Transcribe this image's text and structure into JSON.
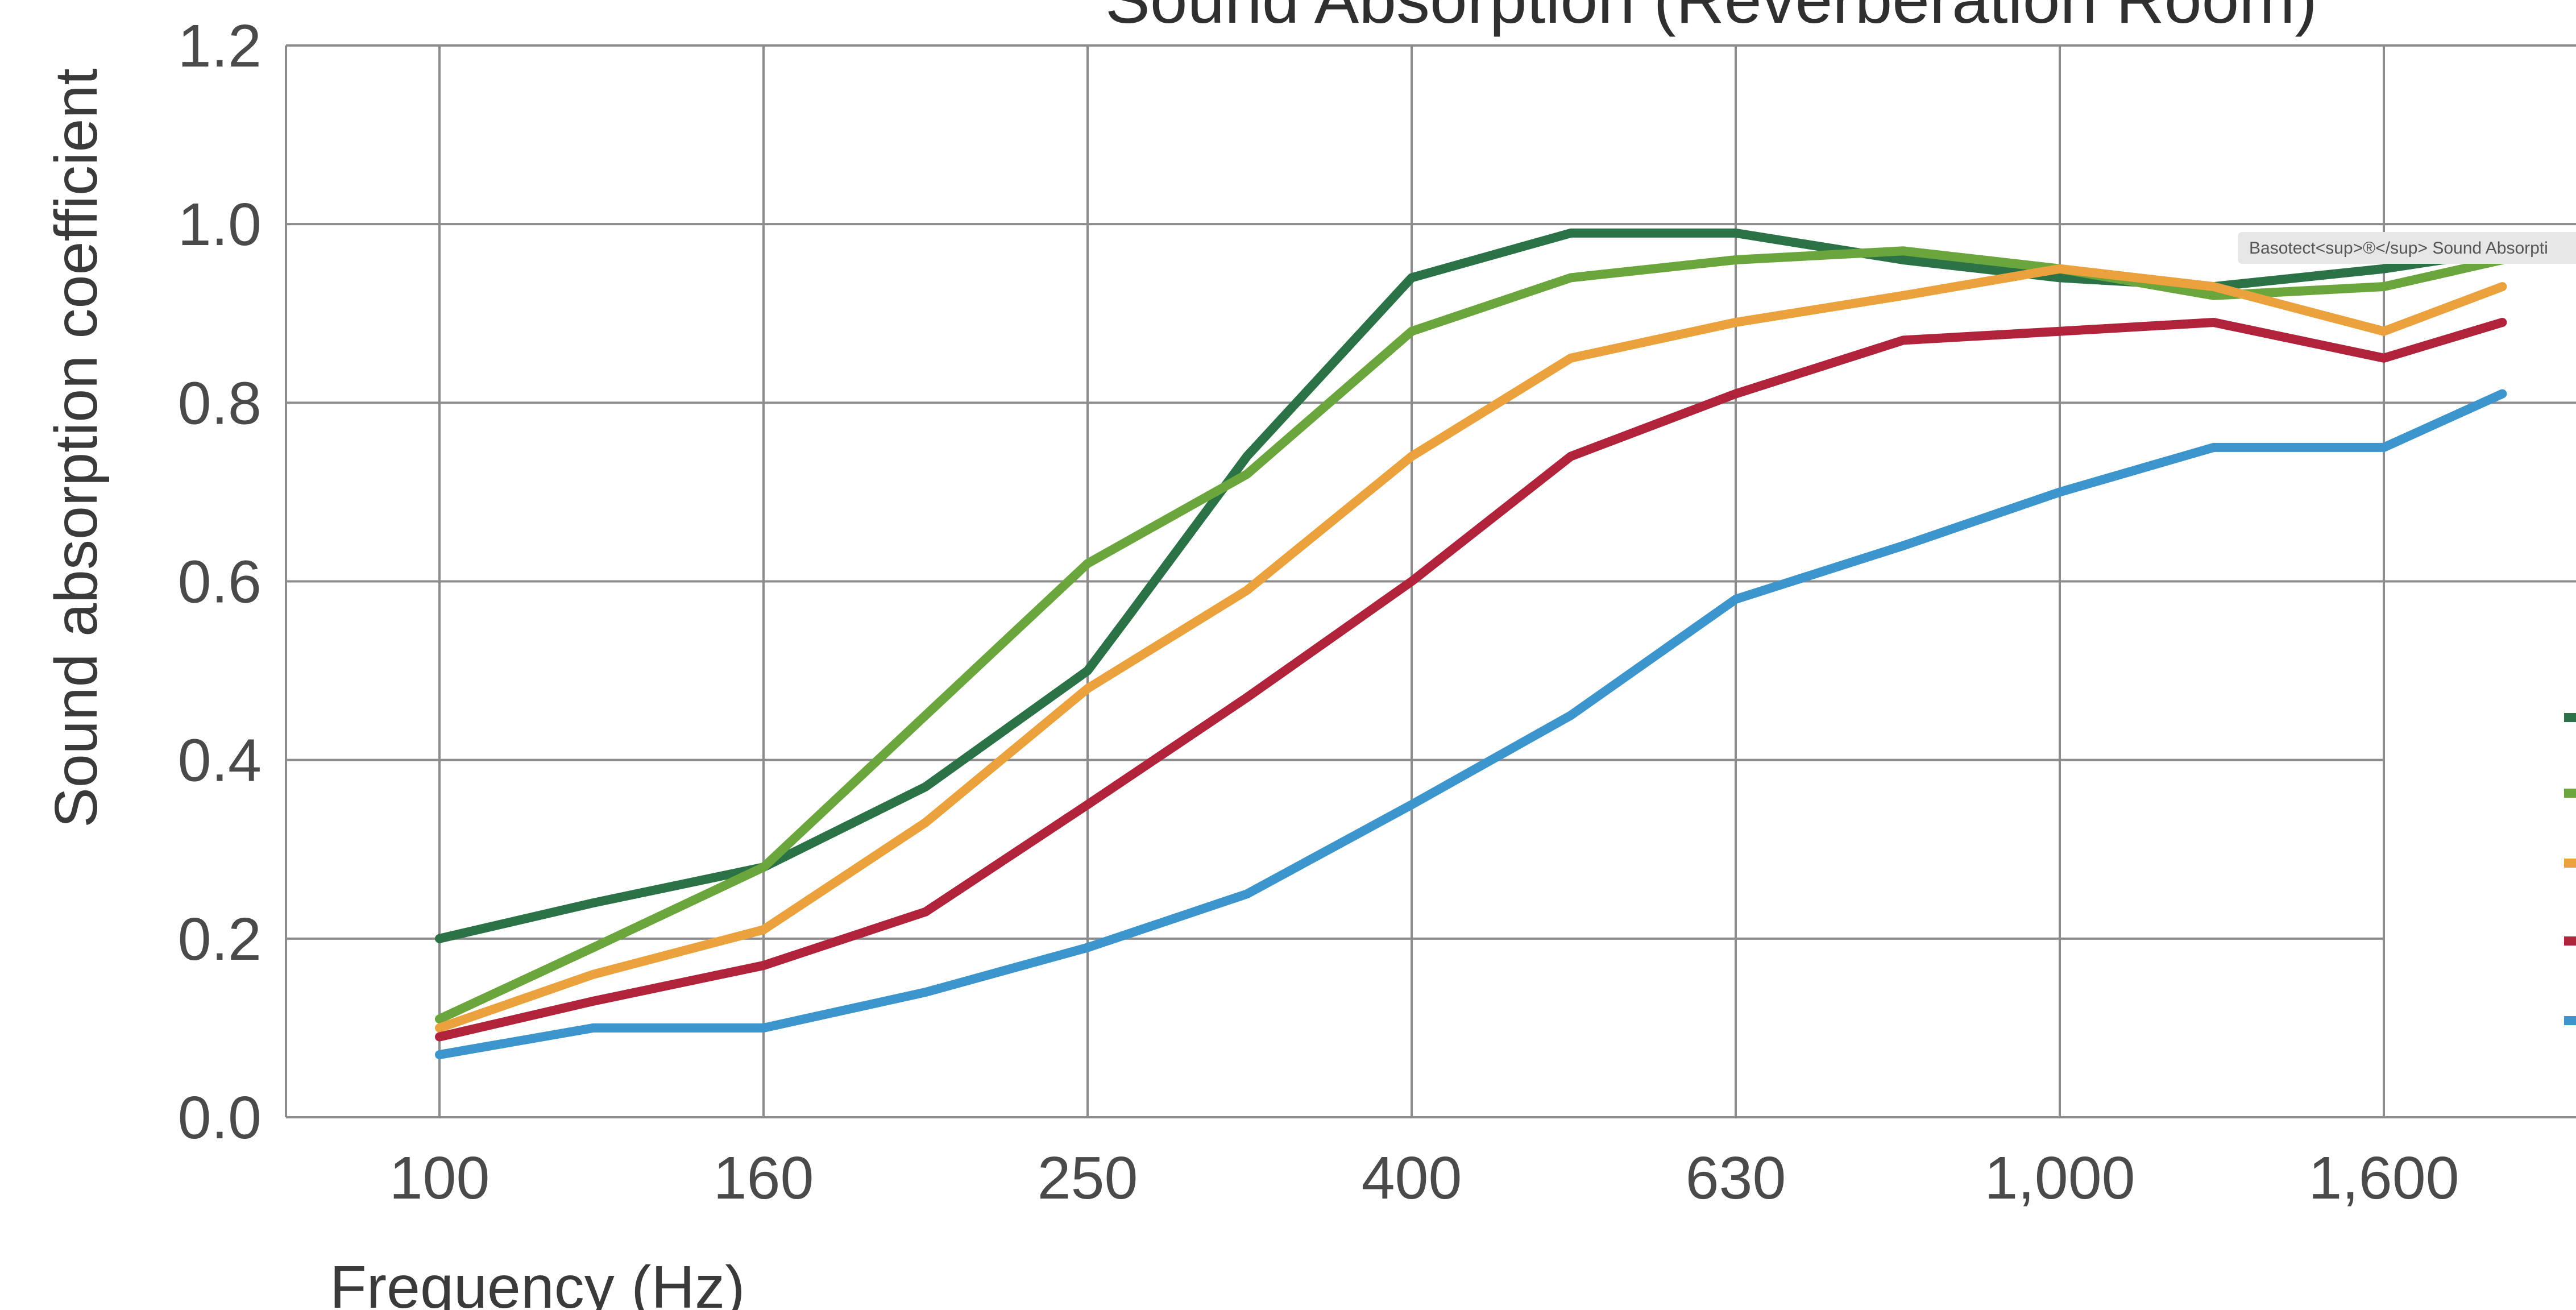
{
  "chart_data": {
    "type": "line",
    "title": "Sound Absorption (Reverberation Room)",
    "xlabel": "Frequency (Hz)",
    "ylabel": "Sound absorption coefficient",
    "x_scale": "log",
    "x_tick_labels": [
      "100",
      "160",
      "250",
      "400",
      "630",
      "1,000",
      "1,600"
    ],
    "x_tick_values": [
      100,
      160,
      250,
      400,
      630,
      1000,
      1600
    ],
    "y_tick_labels": [
      "0.0",
      "0.2",
      "0.4",
      "0.6",
      "0.8",
      "1.0",
      "1.2"
    ],
    "ylim": [
      0,
      1.2
    ],
    "grid": true,
    "legend_position": "right (cropped)",
    "annotation": "Basotect<sup>®</sup> Sound Absorpti",
    "series": [
      {
        "color": "#2b7347",
        "points": [
          [
            100,
            0.2
          ],
          [
            125,
            0.24
          ],
          [
            160,
            0.28
          ],
          [
            200,
            0.37
          ],
          [
            250,
            0.5
          ],
          [
            265,
            0.56
          ],
          [
            315,
            0.74
          ],
          [
            400,
            0.94
          ],
          [
            500,
            0.99
          ],
          [
            630,
            0.99
          ],
          [
            800,
            0.96
          ],
          [
            1000,
            0.94
          ],
          [
            1250,
            0.93
          ],
          [
            1600,
            0.95
          ],
          [
            1900,
            0.97
          ]
        ]
      },
      {
        "color": "#6aa63b",
        "points": [
          [
            100,
            0.11
          ],
          [
            125,
            0.19
          ],
          [
            160,
            0.28
          ],
          [
            200,
            0.45
          ],
          [
            250,
            0.62
          ],
          [
            315,
            0.72
          ],
          [
            400,
            0.88
          ],
          [
            500,
            0.94
          ],
          [
            630,
            0.96
          ],
          [
            800,
            0.97
          ],
          [
            1000,
            0.95
          ],
          [
            1250,
            0.92
          ],
          [
            1600,
            0.93
          ],
          [
            1900,
            0.96
          ]
        ]
      },
      {
        "color": "#eba23c",
        "points": [
          [
            100,
            0.1
          ],
          [
            125,
            0.16
          ],
          [
            160,
            0.21
          ],
          [
            200,
            0.33
          ],
          [
            250,
            0.48
          ],
          [
            315,
            0.59
          ],
          [
            400,
            0.74
          ],
          [
            500,
            0.85
          ],
          [
            630,
            0.89
          ],
          [
            800,
            0.92
          ],
          [
            1000,
            0.95
          ],
          [
            1250,
            0.93
          ],
          [
            1600,
            0.88
          ],
          [
            1900,
            0.93
          ]
        ]
      },
      {
        "color": "#b0233a",
        "points": [
          [
            100,
            0.09
          ],
          [
            125,
            0.13
          ],
          [
            160,
            0.17
          ],
          [
            200,
            0.23
          ],
          [
            250,
            0.35
          ],
          [
            315,
            0.47
          ],
          [
            400,
            0.6
          ],
          [
            500,
            0.74
          ],
          [
            630,
            0.81
          ],
          [
            800,
            0.87
          ],
          [
            1000,
            0.88
          ],
          [
            1250,
            0.89
          ],
          [
            1600,
            0.85
          ],
          [
            1900,
            0.89
          ]
        ]
      },
      {
        "color": "#3c95cc",
        "points": [
          [
            100,
            0.07
          ],
          [
            125,
            0.1
          ],
          [
            160,
            0.1
          ],
          [
            200,
            0.14
          ],
          [
            250,
            0.19
          ],
          [
            315,
            0.25
          ],
          [
            400,
            0.35
          ],
          [
            500,
            0.45
          ],
          [
            630,
            0.58
          ],
          [
            800,
            0.64
          ],
          [
            1000,
            0.7
          ],
          [
            1250,
            0.75
          ],
          [
            1600,
            0.75
          ],
          [
            1900,
            0.81
          ]
        ]
      }
    ]
  }
}
